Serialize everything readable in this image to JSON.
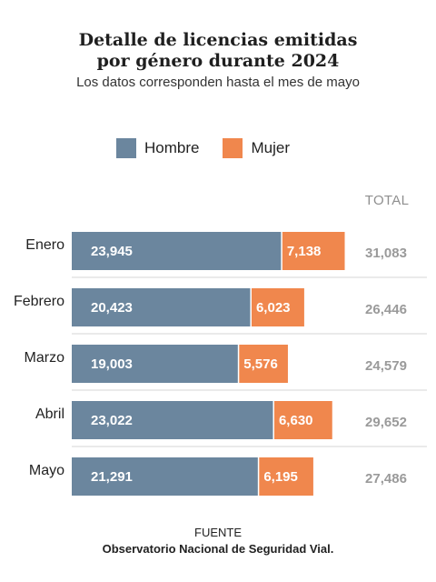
{
  "title_line1": "Detalle de licencias emitidas",
  "title_line2": "por género durante 2024",
  "subtitle": "Los datos corresponden hasta el mes de mayo",
  "legend": {
    "hombre": "Hombre",
    "mujer": "Mujer"
  },
  "total_header": "TOTAL",
  "source_label": "FUENTE",
  "source_name": "Observatorio Nacional de Seguridad Vial.",
  "colors": {
    "hombre": "#6b869e",
    "mujer": "#f0874d",
    "total": "#9a9a9a",
    "separator": "#d6d6d6"
  },
  "chart_data": {
    "type": "bar",
    "orientation": "horizontal",
    "stacked": true,
    "categories": [
      "Enero",
      "Febrero",
      "Marzo",
      "Abril",
      "Mayo"
    ],
    "series": [
      {
        "name": "Hombre",
        "values": [
          23945,
          20423,
          19003,
          23022,
          21291
        ]
      },
      {
        "name": "Mujer",
        "values": [
          7138,
          6023,
          5576,
          6630,
          6195
        ]
      }
    ],
    "labels": {
      "Hombre": [
        "23,945",
        "20,423",
        "19,003",
        "23,022",
        "21,291"
      ],
      "Mujer": [
        "7,138",
        "6,023",
        "5,576",
        "6,630",
        "6,195"
      ]
    },
    "totals": [
      "31,083",
      "26,446",
      "24,579",
      "29,652",
      "27,486"
    ],
    "legend_position": "top",
    "grid": false
  }
}
